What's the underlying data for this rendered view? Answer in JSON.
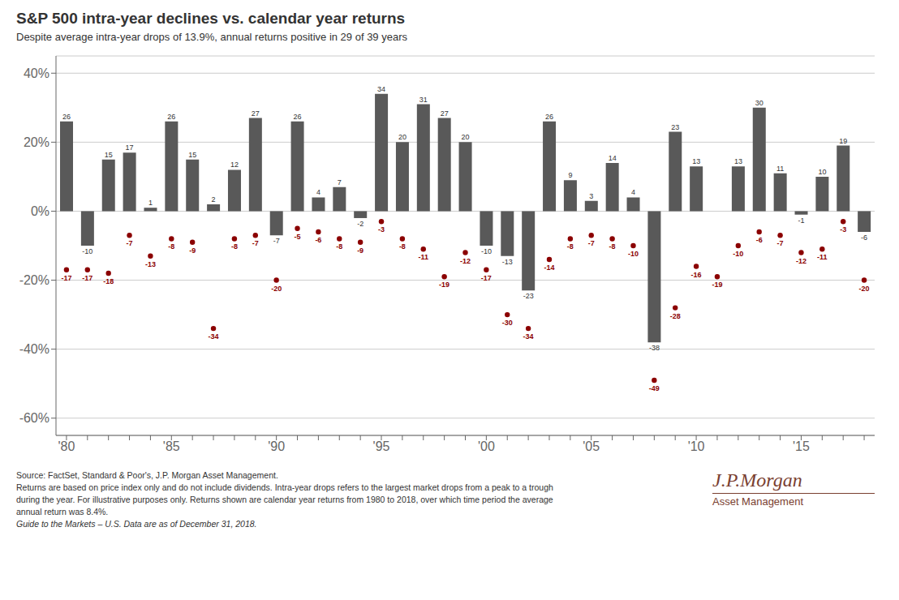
{
  "chart_data": {
    "type": "bar",
    "title": "S&P 500 intra-year declines vs. calendar year returns",
    "subtitle": "Despite average intra-year drops of 13.9%, annual returns positive in 29 of 39 years",
    "annotations": [
      "Source: FactSet, Standard & Poor's, J.P. Morgan Asset Management.",
      "Returns are based on price index only and do not include dividends. Intra-year drops refers to the largest market drops from a peak to a trough",
      "during the year. For illustrative purposes only. Returns shown are calendar year returns from 1980 to 2018, over which time period the average",
      "annual return was 8.4%.",
      "Guide to the Markets – U.S. Data are as of December 31, 2018.",
      "J.P.Morgan",
      "Asset Management"
    ],
    "categories": [
      "'80",
      null,
      null,
      null,
      null,
      "'85",
      null,
      null,
      null,
      null,
      "'90",
      null,
      null,
      null,
      null,
      "'95",
      null,
      null,
      null,
      null,
      "'00",
      null,
      null,
      null,
      null,
      "'05",
      null,
      null,
      null,
      null,
      "'10",
      null,
      null,
      null,
      null,
      "'15",
      null,
      null,
      null
    ],
    "series": [
      {
        "type": "bar",
        "color": "#595959",
        "values": [
          26,
          -10,
          15,
          17,
          1,
          26,
          15,
          2,
          12,
          27,
          -7,
          26,
          4,
          7,
          -2,
          34,
          20,
          31,
          27,
          20,
          -10,
          -13,
          -23,
          26,
          9,
          3,
          14,
          4,
          -38,
          23,
          13,
          0,
          13,
          30,
          11,
          -1,
          10,
          19,
          -6
        ]
      },
      {
        "type": "scatter",
        "color": "#8B0000",
        "values": [
          -17,
          -17,
          -18,
          -7,
          -13,
          -8,
          -9,
          -34,
          -8,
          -7,
          -20,
          -5,
          -6,
          -8,
          -9,
          -3,
          -8,
          -11,
          -19,
          -12,
          -17,
          -30,
          -34,
          -14,
          -8,
          -7,
          -8,
          -10,
          -49,
          -28,
          -16,
          -19,
          -10,
          -6,
          -7,
          -12,
          -11,
          -3,
          -20
        ]
      }
    ],
    "ylim": [
      -65,
      45
    ],
    "yticks": [
      {
        "value": -60,
        "label": "-60%"
      },
      {
        "value": -40,
        "label": "-40%"
      },
      {
        "value": -20,
        "label": "-20%"
      },
      {
        "value": 0,
        "label": "0%"
      },
      {
        "value": 20,
        "label": "20%"
      },
      {
        "value": 40,
        "label": "40%"
      }
    ],
    "grid": true,
    "data_labels": true
  }
}
